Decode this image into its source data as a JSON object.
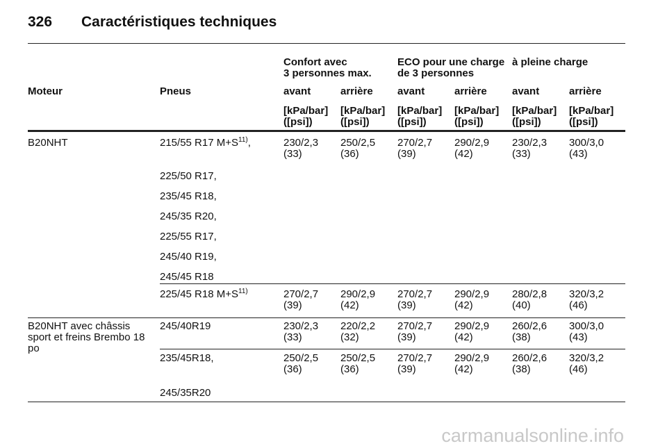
{
  "header": {
    "page_number": "326",
    "title": "Caractéristiques techniques"
  },
  "table": {
    "group_headers": [
      [
        "Confort avec",
        "3 personnes max."
      ],
      [
        "ECO pour une charge",
        "de 3 personnes"
      ],
      [
        "à pleine charge"
      ]
    ],
    "column_headers": [
      "Moteur",
      "Pneus",
      "avant",
      "arrière",
      "avant",
      "arrière",
      "avant",
      "arrière"
    ],
    "units": [
      [
        "[kPa/bar]",
        "([psi])"
      ],
      [
        "[kPa/bar]",
        "([psi])"
      ],
      [
        "[kPa/bar]",
        "([psi])"
      ],
      [
        "[kPa/bar]",
        "([psi])"
      ],
      [
        "[kPa/bar]",
        "([psi])"
      ],
      [
        "[kPa/bar]",
        "([psi])"
      ]
    ],
    "sections": [
      {
        "engine": [
          "B20NHT"
        ],
        "rows": [
          {
            "tires": [
              {
                "text": "215/55 R17 M+S",
                "note": "11)",
                "after": ","
              },
              {
                "text": "225/50 R17,"
              },
              {
                "text": "235/45 R18,"
              },
              {
                "text": "245/35 R20,"
              },
              {
                "text": "225/55 R17,"
              },
              {
                "text": "245/40 R19,"
              },
              {
                "text": "245/45 R18"
              }
            ],
            "values": [
              [
                "230/2,3",
                "(33)"
              ],
              [
                "250/2,5",
                "(36)"
              ],
              [
                "270/2,7",
                "(39)"
              ],
              [
                "290/2,9",
                "(42)"
              ],
              [
                "230/2,3",
                "(33)"
              ],
              [
                "300/3,0",
                "(43)"
              ]
            ]
          },
          {
            "tires": [
              {
                "text": "225/45 R18 M+S",
                "note": "11)"
              }
            ],
            "values": [
              [
                "270/2,7",
                "(39)"
              ],
              [
                "290/2,9",
                "(42)"
              ],
              [
                "270/2,7",
                "(39)"
              ],
              [
                "290/2,9",
                "(42)"
              ],
              [
                "280/2,8",
                "(40)"
              ],
              [
                "320/3,2",
                "(46)"
              ]
            ]
          }
        ]
      },
      {
        "engine": [
          "B20NHT avec châssis",
          "sport et freins Brembo 18",
          "po"
        ],
        "rows": [
          {
            "tires": [
              {
                "text": "245/40R19"
              }
            ],
            "values": [
              [
                "230/2,3",
                "(33)"
              ],
              [
                "220/2,2",
                "(32)"
              ],
              [
                "270/2,7",
                "(39)"
              ],
              [
                "290/2,9",
                "(42)"
              ],
              [
                "260/2,6",
                "(38)"
              ],
              [
                "300/3,0",
                "(43)"
              ]
            ]
          },
          {
            "tires": [
              {
                "text": "235/45R18,"
              },
              {
                "text": "245/35R20"
              }
            ],
            "values": [
              [
                "250/2,5",
                "(36)"
              ],
              [
                "250/2,5",
                "(36)"
              ],
              [
                "270/2,7",
                "(39)"
              ],
              [
                "290/2,9",
                "(42)"
              ],
              [
                "260/2,6",
                "(38)"
              ],
              [
                "320/3,2",
                "(46)"
              ]
            ]
          }
        ]
      }
    ]
  },
  "watermark": "carmanualsonline.info"
}
